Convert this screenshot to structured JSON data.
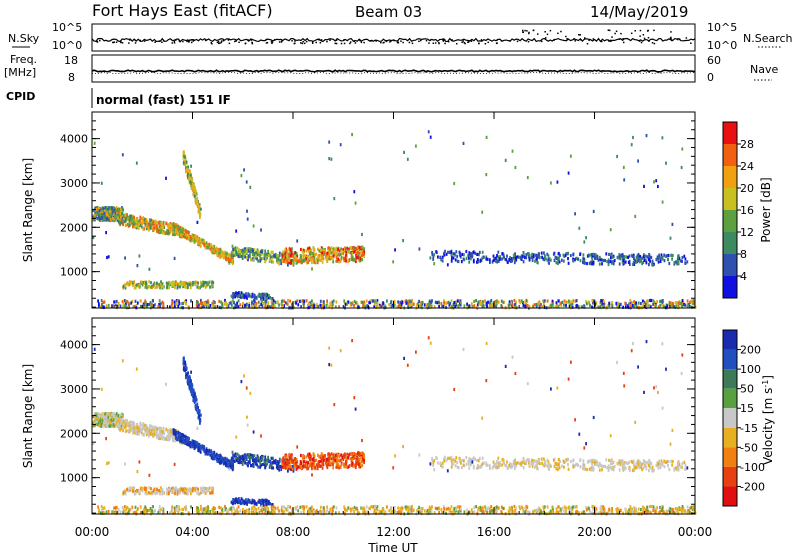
{
  "header": {
    "station": "Fort Hays East (fitACF)",
    "beam": "Beam 03",
    "date": "14/May/2019"
  },
  "top_panels": {
    "nsky_label": "N.Sky",
    "nsky_ticks": [
      "10^5",
      "10^0"
    ],
    "nsearch_label": "N.Search",
    "nsearch_ticks": [
      "10^5",
      "10^0"
    ],
    "freq_label": "Freq.",
    "freq_unit": "[MHz]",
    "freq_ticks": [
      "18",
      "8"
    ],
    "nave_label": "Nave",
    "nave_ticks": [
      "60",
      "0"
    ],
    "cpid_label": "CPID",
    "mode_text": "normal (fast) 151 IF"
  },
  "colors": {
    "power": [
      "#1010e0",
      "#3050b0",
      "#3c8a62",
      "#5ca040",
      "#c8c020",
      "#f0a010",
      "#f06010",
      "#e81010"
    ],
    "velocity": [
      "#1b2bb0",
      "#2050c0",
      "#3c7a58",
      "#58a040",
      "#c8c8c8",
      "#e8b020",
      "#f08010",
      "#e84010",
      "#e01010"
    ]
  },
  "chart_data": [
    {
      "type": "heatmap",
      "name": "power-panel",
      "ylabel": "Slant Range [km]",
      "ylim": [
        180,
        4600
      ],
      "yticks": [
        "1000",
        "2000",
        "3000",
        "4000"
      ],
      "xlim": [
        0,
        24
      ],
      "colorbar": {
        "label": "Power [dB]",
        "range": [
          0,
          32
        ],
        "ticks": [
          "4",
          "8",
          "12",
          "16",
          "20",
          "24",
          "28"
        ]
      }
    },
    {
      "type": "heatmap",
      "name": "velocity-panel",
      "xlabel": "Time UT",
      "ylabel": "Slant Range [km]",
      "ylim": [
        180,
        4600
      ],
      "yticks": [
        "1000",
        "2000",
        "3000",
        "4000"
      ],
      "xlim": [
        0,
        24
      ],
      "xticks": [
        "00:00",
        "04:00",
        "08:00",
        "12:00",
        "16:00",
        "20:00",
        "00:00"
      ],
      "colorbar": {
        "label": "Velocity [m s^-1]",
        "ticks": [
          "200",
          "100",
          "50",
          "15",
          "-15",
          "-50",
          "-100",
          "-200"
        ]
      }
    }
  ]
}
